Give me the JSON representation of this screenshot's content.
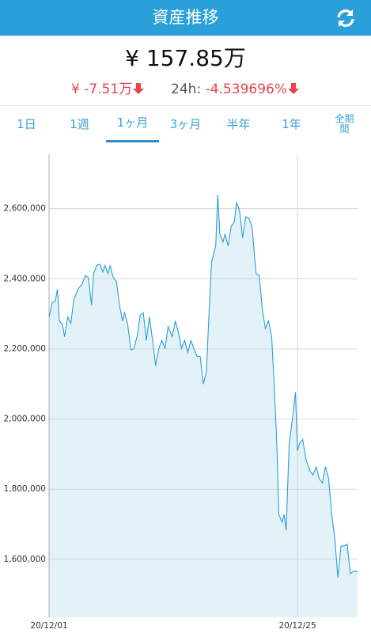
{
  "header": {
    "title": "資産推移"
  },
  "balance": {
    "total": "¥ 157.85万",
    "change": "¥ -7.51万",
    "change_24h_label": "24h:",
    "change_24h": "-4.539696%"
  },
  "tabs": [
    "1日",
    "1週",
    "1ヶ月",
    "3ヶ月",
    "半年",
    "1年",
    "全期間"
  ],
  "selected_tab": 2,
  "chart_data": {
    "type": "area",
    "color": "#2a9fd6",
    "fill_color": "#e3f1f9",
    "grid": true,
    "x": [
      0,
      0.3,
      0.6,
      0.8,
      1.0,
      1.3,
      1.5,
      1.8,
      2.1,
      2.4,
      2.8,
      3.2,
      3.5,
      3.8,
      4.1,
      4.3,
      4.6,
      4.9,
      5.2,
      5.4,
      5.7,
      5.9,
      6.2,
      6.5,
      6.8,
      7.1,
      7.3,
      7.6,
      7.9,
      8.2,
      8.5,
      8.8,
      9.1,
      9.4,
      9.7,
      10.0,
      10.3,
      10.6,
      10.9,
      11.2,
      11.5,
      11.9,
      12.2,
      12.5,
      12.8,
      13.1,
      13.4,
      13.7,
      14.0,
      14.3,
      14.6,
      14.9,
      15.2,
      15.5,
      15.7,
      16.1,
      16.3,
      16.5,
      16.8,
      17.0,
      17.3,
      17.6,
      17.9,
      18.1,
      18.4,
      18.7,
      19.0,
      19.3,
      19.6,
      20.0,
      20.3,
      20.6,
      20.9,
      21.2,
      21.5,
      21.8,
      22.0,
      22.2,
      22.5,
      22.7,
      22.9,
      23.2,
      23.5,
      23.8,
      24.0,
      24.2,
      24.5,
      24.8,
      25.2,
      25.5,
      25.8,
      26.1,
      26.4,
      26.7,
      27.0,
      27.3,
      27.6,
      27.9,
      28.2,
      28.5,
      28.8,
      29.1,
      29.4,
      29.8
    ],
    "values": [
      2291000,
      2332000,
      2336000,
      2370000,
      2280000,
      2269000,
      2235000,
      2291000,
      2273000,
      2341000,
      2370000,
      2386000,
      2409000,
      2404000,
      2325000,
      2415000,
      2438000,
      2442000,
      2420000,
      2438000,
      2415000,
      2438000,
      2404000,
      2393000,
      2325000,
      2280000,
      2303000,
      2269000,
      2197000,
      2201000,
      2235000,
      2296000,
      2303000,
      2224000,
      2291000,
      2224000,
      2152000,
      2201000,
      2224000,
      2201000,
      2264000,
      2235000,
      2280000,
      2246000,
      2201000,
      2224000,
      2190000,
      2224000,
      2201000,
      2179000,
      2179000,
      2100000,
      2134000,
      2336000,
      2449000,
      2494000,
      2640000,
      2528000,
      2505000,
      2528000,
      2494000,
      2550000,
      2562000,
      2618000,
      2595000,
      2517000,
      2577000,
      2573000,
      2550000,
      2415000,
      2409000,
      2314000,
      2258000,
      2280000,
      2235000,
      2066000,
      1931000,
      1728000,
      1706000,
      1728000,
      1683000,
      1931000,
      1999000,
      2077000,
      1909000,
      1931000,
      1942000,
      1886000,
      1852000,
      1841000,
      1864000,
      1830000,
      1818000,
      1864000,
      1830000,
      1728000,
      1661000,
      1548000,
      1638000,
      1638000,
      1643000,
      1559000,
      1566000,
      1566000
    ],
    "xlim": [
      0,
      29.8
    ],
    "xticks": [
      {
        "value": 0,
        "label": "20/12/01"
      },
      {
        "value": 24,
        "label": "20/12/25"
      }
    ],
    "ylim": [
      1435000,
      2755000
    ],
    "yticks": [
      {
        "value": 1600000,
        "label": "1,600,000"
      },
      {
        "value": 1800000,
        "label": "1,800,000"
      },
      {
        "value": 2000000,
        "label": "2,000,000"
      },
      {
        "value": 2200000,
        "label": "2,200,000"
      },
      {
        "value": 2400000,
        "label": "2,400,000"
      },
      {
        "value": 2600000,
        "label": "2,600,000"
      }
    ]
  }
}
